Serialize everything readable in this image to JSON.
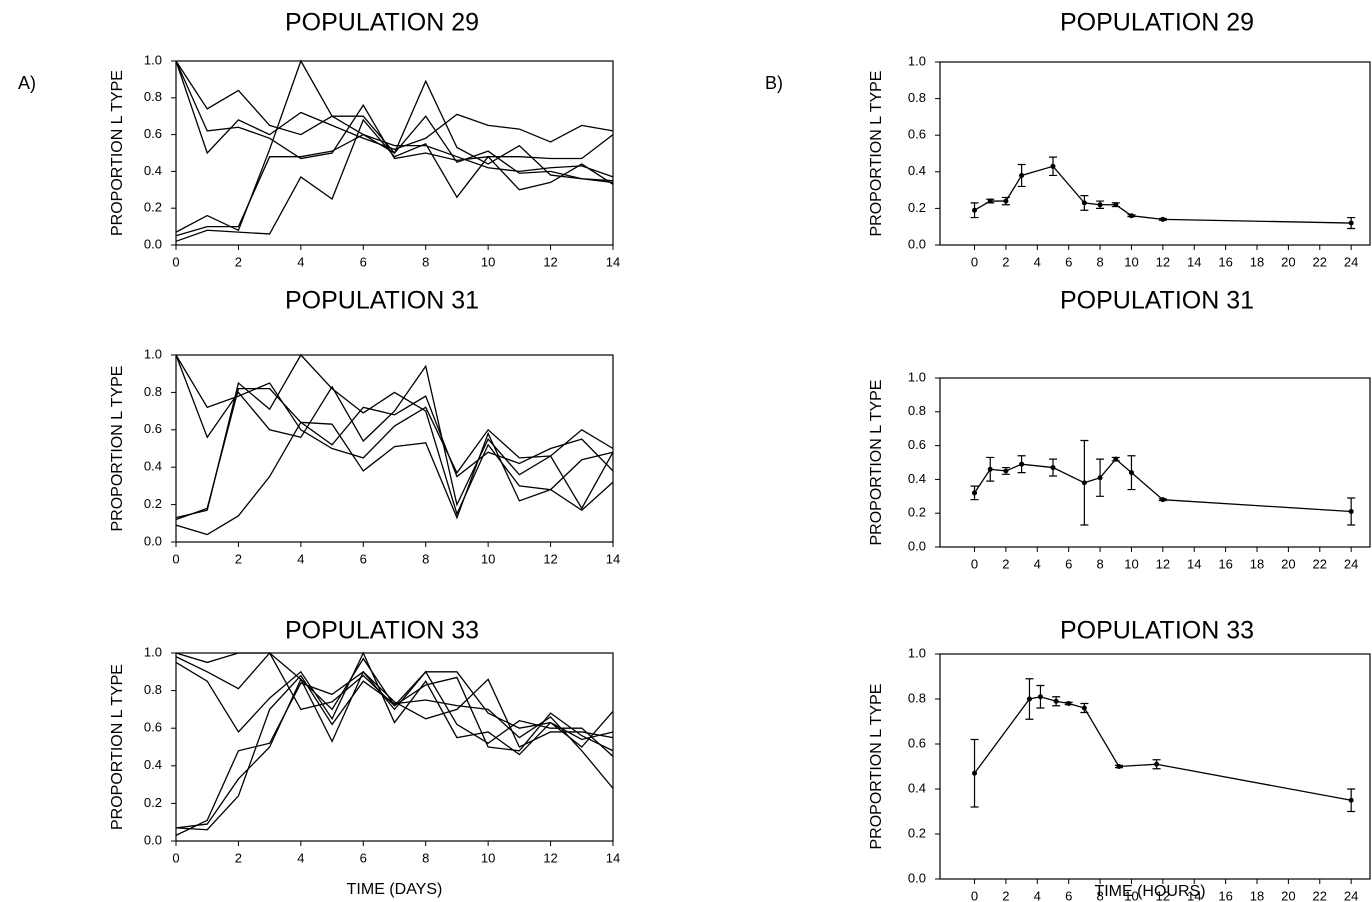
{
  "chart_data": [
    {
      "type": "line",
      "panel_label": "A)",
      "title": "POPULATION 29",
      "ylabel": "PROPORTION L TYPE",
      "x": [
        0,
        1,
        2,
        3,
        4,
        5,
        6,
        7,
        8,
        9,
        10,
        11,
        12,
        13,
        14
      ],
      "series": [
        {
          "color": "#000000",
          "values": [
            1.0,
            0.74,
            0.84,
            0.65,
            0.6,
            0.7,
            0.7,
            0.5,
            0.89,
            0.53,
            0.44,
            0.54,
            0.38,
            0.36,
            0.35
          ]
        },
        {
          "color": "#000000",
          "values": [
            1.0,
            0.5,
            0.68,
            0.6,
            0.72,
            0.65,
            0.58,
            0.52,
            0.58,
            0.71,
            0.65,
            0.63,
            0.56,
            0.65,
            0.62
          ]
        },
        {
          "color": "#000000",
          "values": [
            1.0,
            0.62,
            0.64,
            0.58,
            0.47,
            0.5,
            0.76,
            0.47,
            0.5,
            0.46,
            0.48,
            0.48,
            0.47,
            0.47,
            0.6
          ]
        },
        {
          "color": "#000000",
          "values": [
            0.07,
            0.16,
            0.08,
            0.52,
            1.0,
            0.7,
            0.6,
            0.5,
            0.7,
            0.45,
            0.51,
            0.39,
            0.4,
            0.36,
            0.34
          ]
        },
        {
          "color": "#000000",
          "values": [
            0.05,
            0.1,
            0.1,
            0.48,
            0.48,
            0.51,
            0.6,
            0.54,
            0.54,
            0.48,
            0.42,
            0.4,
            0.42,
            0.43,
            0.37
          ]
        },
        {
          "color": "#000000",
          "values": [
            0.02,
            0.08,
            0.07,
            0.06,
            0.37,
            0.25,
            0.68,
            0.48,
            0.55,
            0.26,
            0.48,
            0.3,
            0.34,
            0.44,
            0.33
          ]
        }
      ],
      "xlim": [
        0,
        14
      ],
      "xticks": [
        0,
        2,
        4,
        6,
        8,
        10,
        12,
        14
      ],
      "ylim": [
        0,
        1
      ],
      "yticks": [
        {
          "value": 0,
          "label": "0.0"
        },
        {
          "value": 0.2,
          "label": "0.2"
        },
        {
          "value": 0.4,
          "label": "0.4"
        },
        {
          "value": 0.6,
          "label": "0.6"
        },
        {
          "value": 0.8,
          "label": "0.8"
        },
        {
          "value": 1,
          "label": "1.0"
        }
      ]
    },
    {
      "type": "line",
      "title": "POPULATION 31",
      "ylabel": "PROPORTION L TYPE",
      "x": [
        0,
        1,
        2,
        3,
        4,
        5,
        6,
        7,
        8,
        9,
        10,
        11,
        12,
        13,
        14
      ],
      "series": [
        {
          "color": "#000000",
          "values": [
            1.0,
            0.72,
            0.78,
            0.85,
            0.6,
            0.5,
            0.45,
            0.62,
            0.72,
            0.37,
            0.6,
            0.45,
            0.46,
            0.6,
            0.5
          ]
        },
        {
          "color": "#000000",
          "values": [
            1.0,
            0.56,
            0.8,
            0.6,
            0.56,
            0.83,
            0.54,
            0.7,
            0.94,
            0.2,
            0.55,
            0.36,
            0.46,
            0.18,
            0.48
          ]
        },
        {
          "color": "#000000",
          "values": [
            0.13,
            0.17,
            0.85,
            0.71,
            1.0,
            0.82,
            0.69,
            0.8,
            0.7,
            0.15,
            0.52,
            0.3,
            0.28,
            0.44,
            0.48
          ]
        },
        {
          "color": "#000000",
          "values": [
            0.12,
            0.18,
            0.82,
            0.82,
            0.64,
            0.63,
            0.38,
            0.51,
            0.53,
            0.13,
            0.58,
            0.22,
            0.28,
            0.17,
            0.32
          ]
        },
        {
          "color": "#000000",
          "values": [
            0.09,
            0.04,
            0.14,
            0.35,
            0.64,
            0.52,
            0.72,
            0.68,
            0.78,
            0.35,
            0.48,
            0.42,
            0.5,
            0.55,
            0.38
          ]
        }
      ],
      "xlim": [
        0,
        14
      ],
      "xticks": [
        0,
        2,
        4,
        6,
        8,
        10,
        12,
        14
      ],
      "ylim": [
        0,
        1
      ],
      "yticks": [
        {
          "value": 0,
          "label": "0.0"
        },
        {
          "value": 0.2,
          "label": "0.2"
        },
        {
          "value": 0.4,
          "label": "0.4"
        },
        {
          "value": 0.6,
          "label": "0.6"
        },
        {
          "value": 0.8,
          "label": "0.8"
        },
        {
          "value": 1,
          "label": "1.0"
        }
      ]
    },
    {
      "type": "line",
      "title": "POPULATION 33",
      "ylabel": "PROPORTION L TYPE",
      "xlabel": "TIME (DAYS)",
      "x": [
        0,
        1,
        2,
        3,
        4,
        5,
        6,
        7,
        8,
        9,
        10,
        11,
        12,
        13,
        14
      ],
      "series": [
        {
          "color": "#000000",
          "values": [
            1.0,
            0.95,
            1.0,
            1.0,
            0.86,
            0.7,
            0.97,
            0.72,
            0.9,
            0.9,
            0.68,
            0.6,
            0.63,
            0.54,
            0.58
          ]
        },
        {
          "color": "#000000",
          "values": [
            0.98,
            0.9,
            0.81,
            1.0,
            0.7,
            0.74,
            0.88,
            0.72,
            0.83,
            0.87,
            0.5,
            0.48,
            0.68,
            0.56,
            0.48
          ]
        },
        {
          "color": "#000000",
          "values": [
            0.95,
            0.85,
            0.58,
            0.76,
            0.9,
            0.65,
            1.0,
            0.63,
            0.85,
            0.55,
            0.58,
            0.46,
            0.63,
            0.5,
            0.69
          ]
        },
        {
          "color": "#000000",
          "values": [
            0.07,
            0.06,
            0.24,
            0.7,
            0.88,
            0.62,
            0.85,
            0.73,
            0.75,
            0.72,
            0.7,
            0.55,
            0.66,
            0.48,
            0.28
          ]
        },
        {
          "color": "#000000",
          "values": [
            0.07,
            0.09,
            0.33,
            0.5,
            0.86,
            0.53,
            0.9,
            0.74,
            0.65,
            0.7,
            0.86,
            0.5,
            0.58,
            0.58,
            0.55
          ]
        },
        {
          "color": "#000000",
          "values": [
            0.03,
            0.11,
            0.48,
            0.52,
            0.84,
            0.78,
            0.9,
            0.7,
            0.9,
            0.62,
            0.52,
            0.64,
            0.6,
            0.6,
            0.45
          ]
        }
      ],
      "xlim": [
        0,
        14
      ],
      "xticks": [
        0,
        2,
        4,
        6,
        8,
        10,
        12,
        14
      ],
      "ylim": [
        0,
        1
      ],
      "yticks": [
        {
          "value": 0,
          "label": "0.0"
        },
        {
          "value": 0.2,
          "label": "0.2"
        },
        {
          "value": 0.4,
          "label": "0.4"
        },
        {
          "value": 0.6,
          "label": "0.6"
        },
        {
          "value": 0.8,
          "label": "0.8"
        },
        {
          "value": 1,
          "label": "1.0"
        }
      ]
    },
    {
      "type": "errorbar",
      "panel_label": "B)",
      "title": "POPULATION 29",
      "ylabel": "PROPORTION L TYPE",
      "x": [
        0,
        1,
        2,
        3,
        5,
        7,
        8,
        9,
        10,
        12,
        24
      ],
      "series": [
        {
          "color": "#000000",
          "values": [
            0.19,
            0.24,
            0.24,
            0.38,
            0.43,
            0.23,
            0.22,
            0.22,
            0.16,
            0.14,
            0.12
          ],
          "errors": [
            0.04,
            0.01,
            0.02,
            0.06,
            0.05,
            0.04,
            0.02,
            0.01,
            0.005,
            0.005,
            0.03
          ]
        }
      ],
      "xlim": [
        -2.2,
        25.2
      ],
      "xticks": [
        0,
        2,
        4,
        6,
        8,
        10,
        12,
        14,
        16,
        18,
        20,
        22,
        24
      ],
      "ylim": [
        0,
        1
      ],
      "yticks": [
        {
          "value": 0,
          "label": "0.0"
        },
        {
          "value": 0.2,
          "label": "0.2"
        },
        {
          "value": 0.4,
          "label": "0.4"
        },
        {
          "value": 0.6,
          "label": "0.6"
        },
        {
          "value": 0.8,
          "label": "0.8"
        },
        {
          "value": 1,
          "label": "1.0"
        }
      ]
    },
    {
      "type": "errorbar",
      "title": "POPULATION 31",
      "ylabel": "PROPORTION L TYPE",
      "x": [
        0,
        1,
        2,
        3,
        5,
        7,
        8,
        9,
        10,
        12,
        24
      ],
      "series": [
        {
          "color": "#000000",
          "values": [
            0.32,
            0.46,
            0.45,
            0.49,
            0.47,
            0.38,
            0.41,
            0.52,
            0.44,
            0.28,
            0.21
          ],
          "errors": [
            0.04,
            0.07,
            0.02,
            0.05,
            0.05,
            0.25,
            0.11,
            0.01,
            0.1,
            0.005,
            0.08
          ]
        }
      ],
      "xlim": [
        -2.2,
        25.2
      ],
      "xticks": [
        0,
        2,
        4,
        6,
        8,
        10,
        12,
        14,
        16,
        18,
        20,
        22,
        24
      ],
      "ylim": [
        0,
        1
      ],
      "yticks": [
        {
          "value": 0,
          "label": "0.0"
        },
        {
          "value": 0.2,
          "label": "0.2"
        },
        {
          "value": 0.4,
          "label": "0.4"
        },
        {
          "value": 0.6,
          "label": "0.6"
        },
        {
          "value": 0.8,
          "label": "0.8"
        },
        {
          "value": 1,
          "label": "1.0"
        }
      ]
    },
    {
      "type": "errorbar",
      "title": "POPULATION 33",
      "ylabel": "PROPORTION L TYPE",
      "xlabel": "TIME (HOURS)",
      "x": [
        0,
        3.5,
        4.2,
        5.2,
        6,
        7,
        9.2,
        11.6,
        24
      ],
      "series": [
        {
          "color": "#000000",
          "values": [
            0.47,
            0.8,
            0.81,
            0.79,
            0.78,
            0.76,
            0.5,
            0.51,
            0.35
          ],
          "errors": [
            0.15,
            0.09,
            0.05,
            0.02,
            0.005,
            0.02,
            0.005,
            0.02,
            0.05
          ]
        }
      ],
      "xlim": [
        -2.2,
        25.2
      ],
      "xticks": [
        0,
        2,
        4,
        6,
        8,
        10,
        12,
        14,
        16,
        18,
        20,
        22,
        24
      ],
      "ylim": [
        0,
        1
      ],
      "yticks": [
        {
          "value": 0,
          "label": "0.0"
        },
        {
          "value": 0.2,
          "label": "0.2"
        },
        {
          "value": 0.4,
          "label": "0.4"
        },
        {
          "value": 0.6,
          "label": "0.6"
        },
        {
          "value": 0.8,
          "label": "0.8"
        },
        {
          "value": 1,
          "label": "1.0"
        }
      ]
    }
  ]
}
